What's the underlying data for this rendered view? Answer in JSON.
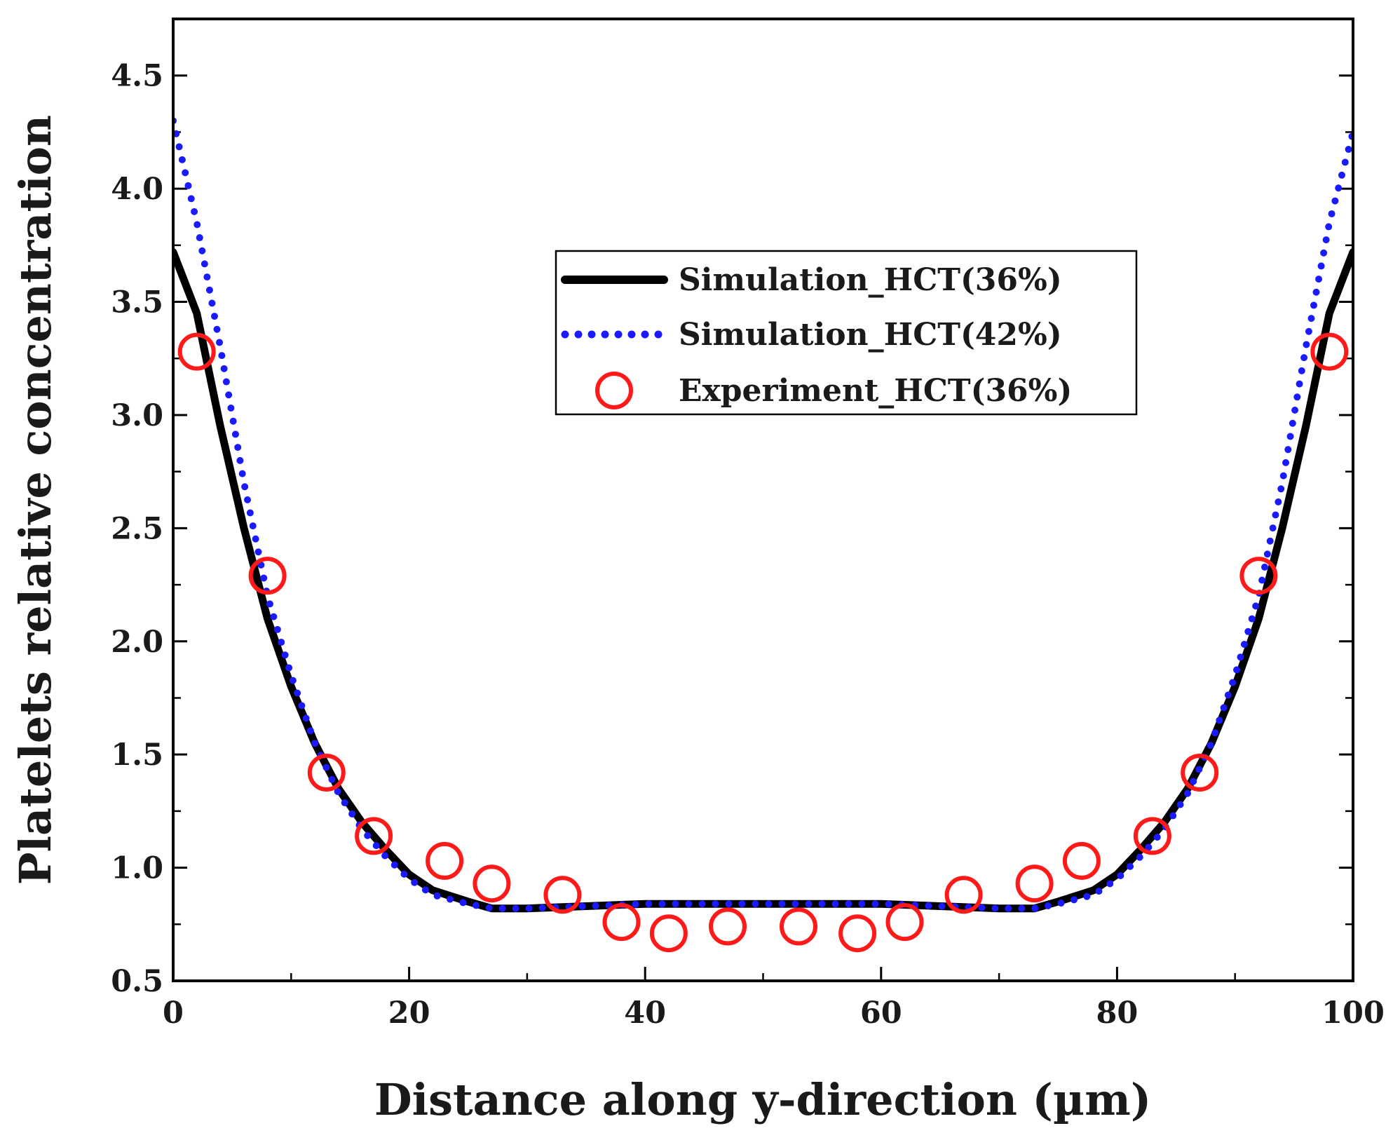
{
  "chart_data": {
    "type": "line",
    "title": "",
    "xlabel": "Distance along y-direction (µm)",
    "ylabel": "Platelets relative concentration",
    "xlim": [
      0,
      100
    ],
    "ylim": [
      0.5,
      4.75
    ],
    "x_ticks": [
      0,
      20,
      40,
      60,
      80,
      100
    ],
    "x_tick_labels": [
      "0",
      "20",
      "40",
      "60",
      "80",
      "100"
    ],
    "y_ticks": [
      0.5,
      1.0,
      1.5,
      2.0,
      2.5,
      3.0,
      3.5,
      4.0,
      4.5
    ],
    "y_tick_labels": [
      "0.5",
      "1.0",
      "1.5",
      "2.0",
      "2.5",
      "3.0",
      "3.5",
      "4.0",
      "4.5"
    ],
    "grid": false,
    "legend_position": "upper-center",
    "series": [
      {
        "name": "Simulation_HCT(36%)",
        "style": "solid",
        "color": "#000000",
        "x": [
          0,
          2,
          4,
          6,
          8,
          10,
          12,
          14,
          16,
          18,
          20,
          22,
          25,
          27,
          30,
          35,
          40,
          45,
          50,
          55,
          60,
          65,
          70,
          73,
          75,
          78,
          80,
          82,
          84,
          86,
          88,
          90,
          92,
          94,
          96,
          98,
          100
        ],
        "values": [
          3.72,
          3.45,
          2.95,
          2.5,
          2.1,
          1.8,
          1.55,
          1.35,
          1.2,
          1.08,
          0.97,
          0.9,
          0.85,
          0.82,
          0.82,
          0.83,
          0.84,
          0.84,
          0.84,
          0.84,
          0.84,
          0.83,
          0.82,
          0.82,
          0.85,
          0.9,
          0.97,
          1.08,
          1.2,
          1.35,
          1.55,
          1.8,
          2.1,
          2.5,
          2.95,
          3.45,
          3.72
        ]
      },
      {
        "name": "Simulation_HCT(42%)",
        "style": "dotted",
        "color": "#1a1aff",
        "x": [
          0,
          2,
          4,
          6,
          8,
          10,
          12,
          14,
          16,
          18,
          20,
          22,
          25,
          27,
          30,
          35,
          40,
          45,
          50,
          55,
          60,
          65,
          70,
          73,
          75,
          78,
          80,
          82,
          84,
          86,
          88,
          90,
          92,
          94,
          96,
          98,
          100
        ],
        "values": [
          4.3,
          3.85,
          3.3,
          2.7,
          2.2,
          1.85,
          1.55,
          1.33,
          1.17,
          1.05,
          0.95,
          0.88,
          0.84,
          0.82,
          0.82,
          0.83,
          0.84,
          0.84,
          0.84,
          0.84,
          0.84,
          0.83,
          0.82,
          0.82,
          0.84,
          0.88,
          0.95,
          1.05,
          1.17,
          1.33,
          1.55,
          1.85,
          2.2,
          2.7,
          3.3,
          3.85,
          4.25
        ]
      },
      {
        "name": "Experiment_HCT(36%)",
        "style": "markers-open-circle",
        "color": "#ff1a1a",
        "x": [
          2,
          8,
          13,
          17,
          23,
          27,
          33,
          38,
          42,
          47,
          53,
          58,
          62,
          67,
          73,
          77,
          83,
          87,
          92,
          98
        ],
        "values": [
          3.28,
          2.29,
          1.42,
          1.14,
          1.03,
          0.93,
          0.88,
          0.76,
          0.71,
          0.74,
          0.74,
          0.71,
          0.76,
          0.88,
          0.93,
          1.03,
          1.14,
          1.42,
          2.29,
          3.28
        ]
      }
    ]
  }
}
